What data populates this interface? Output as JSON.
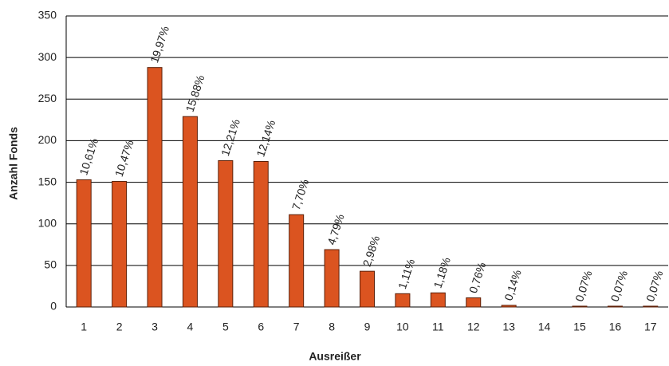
{
  "chart_data": {
    "type": "bar",
    "x_label": "Ausreißer",
    "y_label": "Anzahl Fonds",
    "categories": [
      "1",
      "2",
      "3",
      "4",
      "5",
      "6",
      "7",
      "8",
      "9",
      "10",
      "11",
      "12",
      "13",
      "14",
      "15",
      "16",
      "17"
    ],
    "values": [
      153,
      151,
      288,
      229,
      176,
      175,
      111,
      69,
      43,
      16,
      17,
      11,
      2,
      0,
      1,
      1,
      1
    ],
    "shares": [
      {
        "value": 10.61,
        "label": "10,61%"
      },
      {
        "value": 10.47,
        "label": "10,47%"
      },
      {
        "value": 19.97,
        "label": "19,97%"
      },
      {
        "value": 15.88,
        "label": "15,88%"
      },
      {
        "value": 12.21,
        "label": "12,21%"
      },
      {
        "value": 12.14,
        "label": "12,14%"
      },
      {
        "value": 7.7,
        "label": "7,70%"
      },
      {
        "value": 4.79,
        "label": "4,79%"
      },
      {
        "value": 2.98,
        "label": "2,98%"
      },
      {
        "value": 1.11,
        "label": "1,11%"
      },
      {
        "value": 1.18,
        "label": "1,18%"
      },
      {
        "value": 0.76,
        "label": "0,76%"
      },
      {
        "value": 0.14,
        "label": "0,14%"
      },
      null,
      {
        "value": 0.07,
        "label": "0,07%"
      },
      {
        "value": 0.07,
        "label": "0,07%"
      },
      {
        "value": 0.07,
        "label": "0,07%"
      }
    ],
    "color": "#db5420",
    "ylim": [
      0,
      350
    ],
    "yticks": [
      0,
      50,
      100,
      150,
      200,
      250,
      300,
      350
    ],
    "grid": true
  }
}
